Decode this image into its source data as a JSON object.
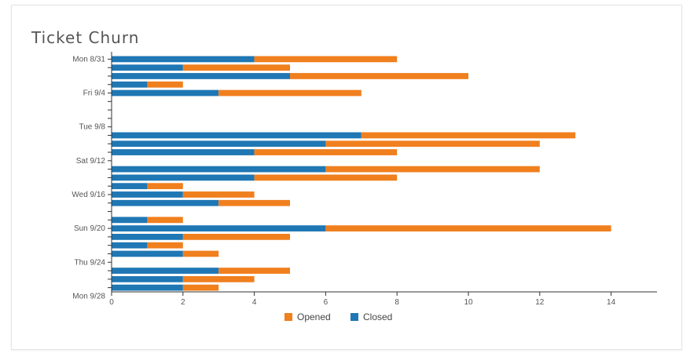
{
  "chart_data": {
    "type": "bar",
    "orientation": "horizontal",
    "stacked": true,
    "title": "Ticket Churn",
    "xlim": [
      0,
      15
    ],
    "x_ticks": [
      0,
      2,
      4,
      6,
      8,
      10,
      12,
      14
    ],
    "y_tick_labels": [
      {
        "label": "Mon 8/31",
        "row": 0
      },
      {
        "label": "Fri 9/4",
        "row": 4
      },
      {
        "label": "Tue 9/8",
        "row": 8
      },
      {
        "label": "Sat 9/12",
        "row": 12
      },
      {
        "label": "Wed 9/16",
        "row": 16
      },
      {
        "label": "Sun 9/20",
        "row": 20
      },
      {
        "label": "Thu 9/24",
        "row": 24
      },
      {
        "label": "Mon 9/28",
        "row": 28
      }
    ],
    "legend_position": "bottom",
    "series": [
      {
        "name": "Closed",
        "color": "#1f77b4",
        "values": [
          4,
          2,
          5,
          1,
          3,
          0,
          0,
          0,
          0,
          7,
          6,
          4,
          0,
          6,
          4,
          1,
          2,
          3,
          0,
          1,
          6,
          2,
          1,
          2,
          0,
          3,
          2,
          2
        ]
      },
      {
        "name": "Opened",
        "color": "#f07f1e",
        "values": [
          4,
          3,
          5,
          1,
          4,
          0,
          0,
          0,
          0,
          6,
          6,
          4,
          0,
          6,
          4,
          1,
          2,
          2,
          0,
          1,
          8,
          3,
          1,
          1,
          0,
          2,
          2,
          1
        ]
      }
    ],
    "legend": [
      "Opened",
      "Closed"
    ]
  }
}
